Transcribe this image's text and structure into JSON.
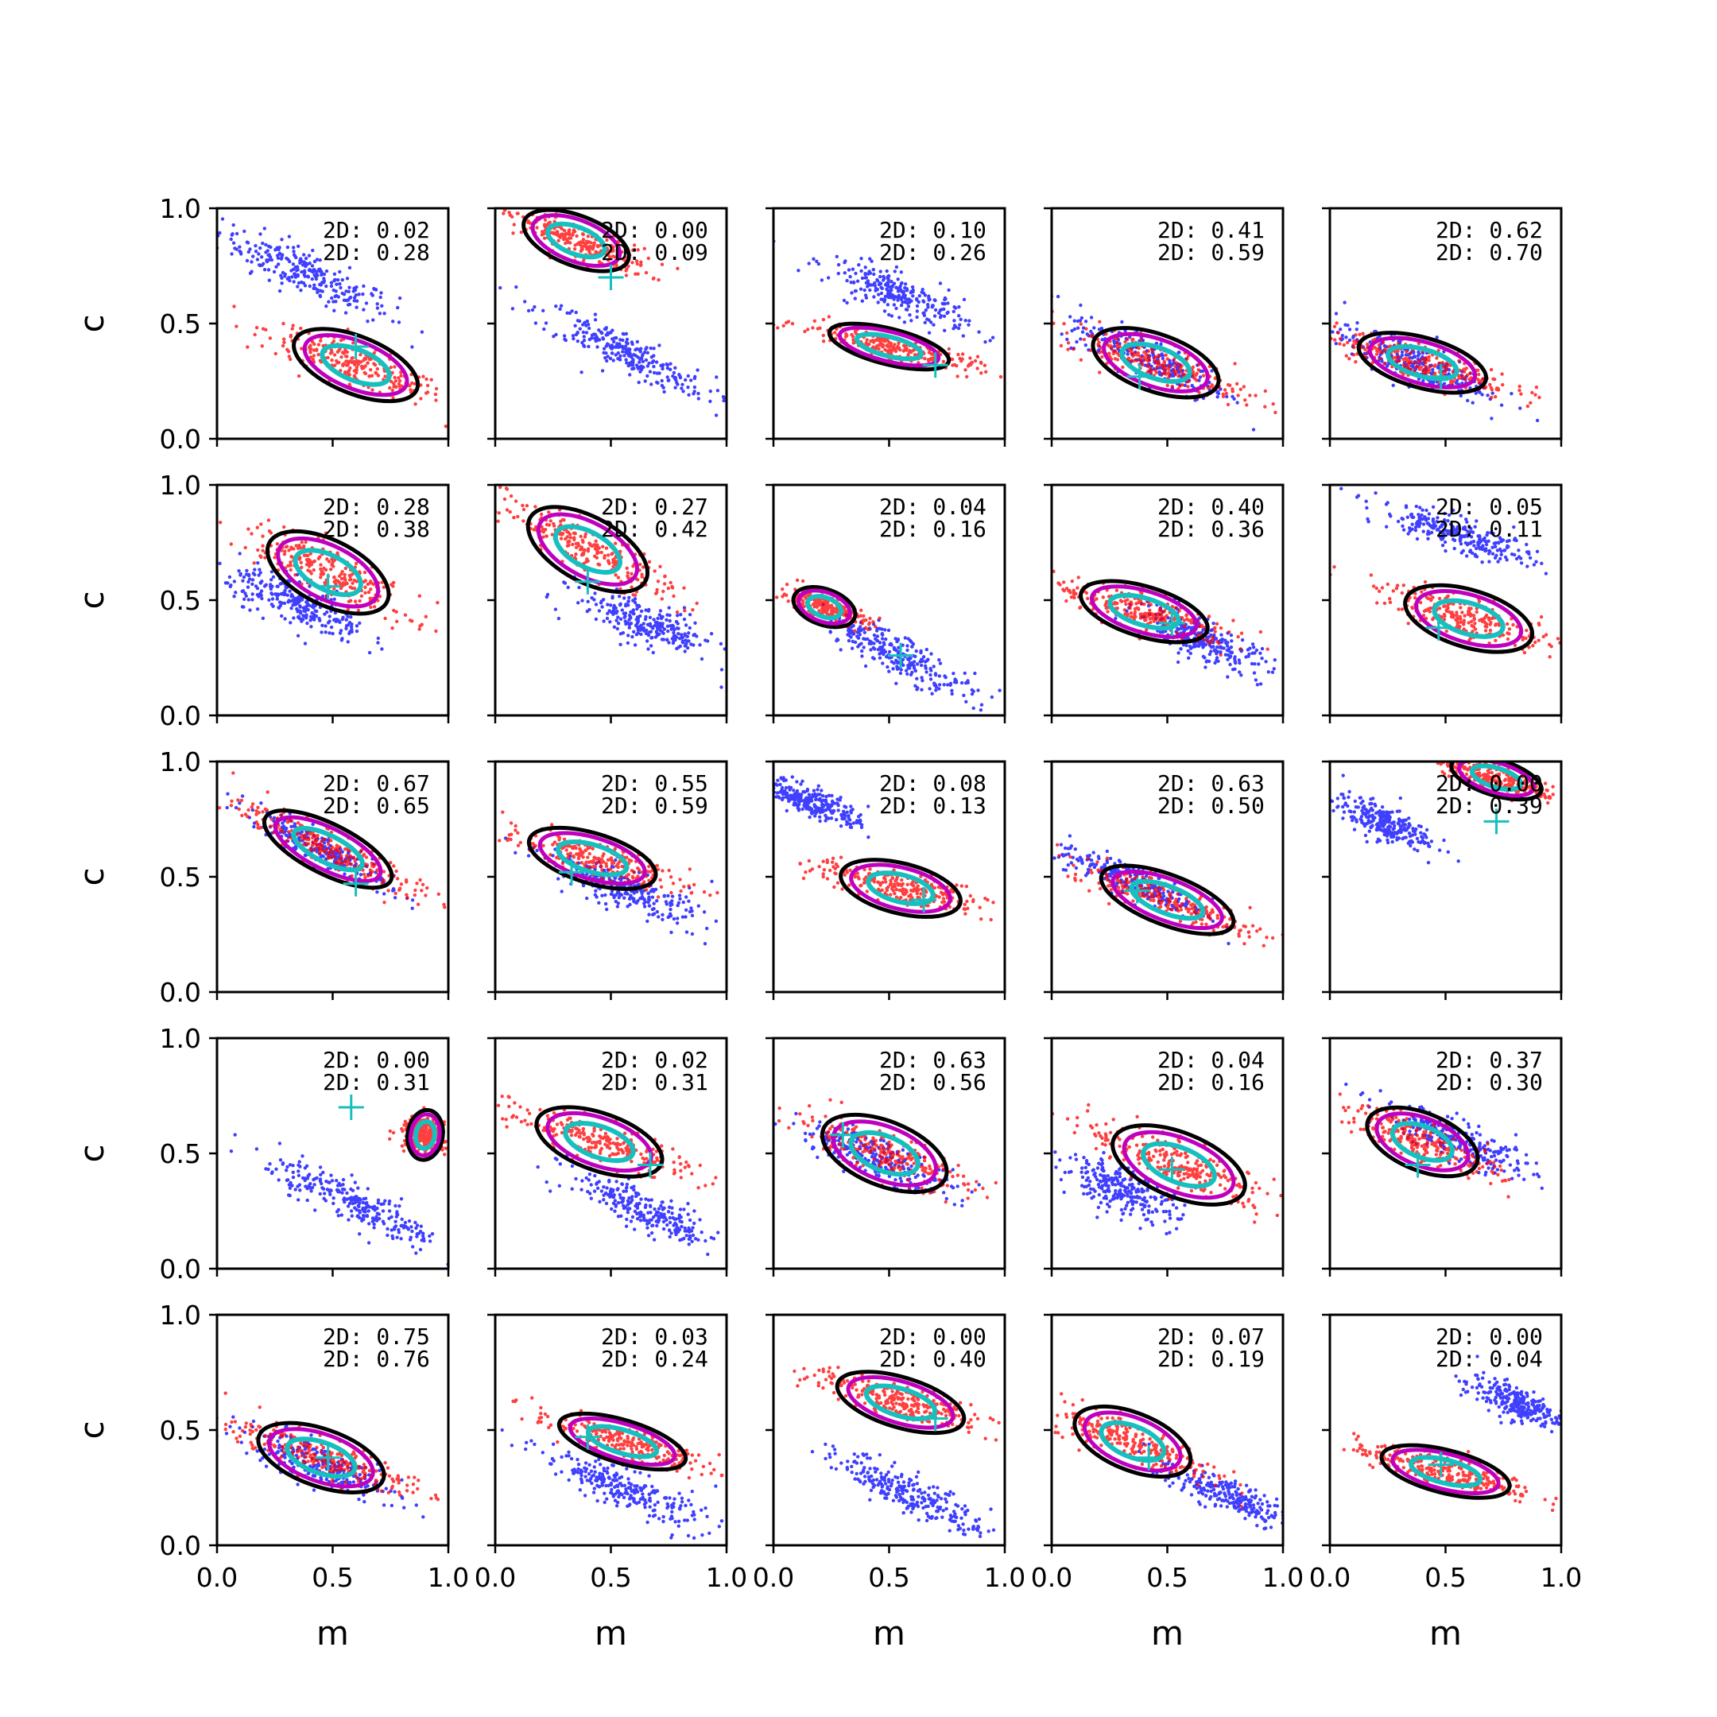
{
  "chart_data": {
    "type": "scatter",
    "grid": {
      "rows": 5,
      "cols": 5
    },
    "xlabel": "m",
    "ylabel": "c",
    "xlim": [
      0,
      1
    ],
    "ylim": [
      0,
      1
    ],
    "xticks": [
      "0.0",
      "0.5",
      "1.0"
    ],
    "yticks": [
      "0.0",
      "0.5",
      "1.0"
    ],
    "grid_lines": false,
    "series_colors": {
      "sample_a": "#0000ff",
      "sample_b": "#ff0000",
      "contour_outer": "#000000",
      "contour_mid": "#bf00bf",
      "contour_inner": "#17bfbf",
      "marker": "#17bfbf"
    },
    "panels": [
      {
        "ann1": "2D: 0.02",
        "ann2": "2D: 0.28",
        "marker": [
          0.6,
          0.4
        ],
        "blue": {
          "cx": 0.38,
          "cy": 0.72,
          "slope": -0.48,
          "len": 0.45,
          "wid": 0.09
        },
        "red": {
          "cx": 0.6,
          "cy": 0.32,
          "slope": -0.4,
          "len": 0.45,
          "wid": 0.08
        }
      },
      {
        "ann1": "2D: 0.00",
        "ann2": "2D: 0.09",
        "marker": [
          0.5,
          0.7
        ],
        "blue": {
          "cx": 0.55,
          "cy": 0.38,
          "slope": -0.5,
          "len": 0.45,
          "wid": 0.08
        },
        "red": {
          "cx": 0.35,
          "cy": 0.86,
          "slope": -0.38,
          "len": 0.38,
          "wid": 0.07
        }
      },
      {
        "ann1": "2D: 0.10",
        "ann2": "2D: 0.26",
        "marker": [
          0.7,
          0.32
        ],
        "blue": {
          "cx": 0.55,
          "cy": 0.62,
          "slope": -0.42,
          "len": 0.35,
          "wid": 0.08
        },
        "red": {
          "cx": 0.5,
          "cy": 0.4,
          "slope": -0.25,
          "len": 0.42,
          "wid": 0.05
        }
      },
      {
        "ann1": "2D: 0.41",
        "ann2": "2D: 0.59",
        "marker": [
          0.38,
          0.27
        ],
        "blue": {
          "cx": 0.42,
          "cy": 0.35,
          "slope": -0.45,
          "len": 0.42,
          "wid": 0.09
        },
        "red": {
          "cx": 0.45,
          "cy": 0.33,
          "slope": -0.35,
          "len": 0.45,
          "wid": 0.08
        }
      },
      {
        "ann1": "2D: 0.62",
        "ann2": "2D: 0.70",
        "marker": [
          0.48,
          0.27
        ],
        "blue": {
          "cx": 0.35,
          "cy": 0.33,
          "slope": -0.38,
          "len": 0.4,
          "wid": 0.08
        },
        "red": {
          "cx": 0.4,
          "cy": 0.33,
          "slope": -0.28,
          "len": 0.45,
          "wid": 0.07
        }
      },
      {
        "ann1": "2D: 0.28",
        "ann2": "2D: 0.38",
        "marker": [
          0.48,
          0.56
        ],
        "blue": {
          "cx": 0.35,
          "cy": 0.48,
          "slope": -0.45,
          "len": 0.35,
          "wid": 0.09
        },
        "red": {
          "cx": 0.48,
          "cy": 0.62,
          "slope": -0.5,
          "len": 0.45,
          "wid": 0.09
        }
      },
      {
        "ann1": "2D: 0.27",
        "ann2": "2D: 0.42",
        "marker": [
          0.4,
          0.58
        ],
        "blue": {
          "cx": 0.65,
          "cy": 0.4,
          "slope": -0.4,
          "len": 0.35,
          "wid": 0.09
        },
        "red": {
          "cx": 0.4,
          "cy": 0.72,
          "slope": -0.55,
          "len": 0.45,
          "wid": 0.09
        }
      },
      {
        "ann1": "2D: 0.04",
        "ann2": "2D: 0.16",
        "marker": [
          0.55,
          0.26
        ],
        "blue": {
          "cx": 0.55,
          "cy": 0.26,
          "slope": -0.5,
          "len": 0.4,
          "wid": 0.08
        },
        "red": {
          "cx": 0.22,
          "cy": 0.47,
          "slope": -0.35,
          "len": 0.22,
          "wid": 0.05
        }
      },
      {
        "ann1": "2D: 0.40",
        "ann2": "2D: 0.36",
        "marker": [
          0.52,
          0.4
        ],
        "blue": {
          "cx": 0.65,
          "cy": 0.33,
          "slope": -0.45,
          "len": 0.35,
          "wid": 0.08
        },
        "red": {
          "cx": 0.4,
          "cy": 0.45,
          "slope": -0.3,
          "len": 0.45,
          "wid": 0.07
        }
      },
      {
        "ann1": "2D: 0.05",
        "ann2": "2D: 0.11",
        "marker": [
          0.47,
          0.38
        ],
        "blue": {
          "cx": 0.55,
          "cy": 0.78,
          "slope": -0.35,
          "len": 0.4,
          "wid": 0.07
        },
        "red": {
          "cx": 0.6,
          "cy": 0.42,
          "slope": -0.3,
          "len": 0.45,
          "wid": 0.08
        }
      },
      {
        "ann1": "2D: 0.67",
        "ann2": "2D: 0.65",
        "marker": [
          0.6,
          0.47
        ],
        "blue": {
          "cx": 0.45,
          "cy": 0.62,
          "slope": -0.55,
          "len": 0.38,
          "wid": 0.06
        },
        "red": {
          "cx": 0.48,
          "cy": 0.62,
          "slope": -0.5,
          "len": 0.48,
          "wid": 0.07
        }
      },
      {
        "ann1": "2D: 0.55",
        "ann2": "2D: 0.59",
        "marker": [
          0.33,
          0.52
        ],
        "blue": {
          "cx": 0.55,
          "cy": 0.45,
          "slope": -0.4,
          "len": 0.4,
          "wid": 0.08
        },
        "red": {
          "cx": 0.42,
          "cy": 0.58,
          "slope": -0.3,
          "len": 0.45,
          "wid": 0.07
        }
      },
      {
        "ann1": "2D: 0.08",
        "ann2": "2D: 0.13",
        "marker": [
          0.65,
          0.4
        ],
        "blue": {
          "cx": 0.18,
          "cy": 0.82,
          "slope": -0.4,
          "len": 0.25,
          "wid": 0.06
        },
        "red": {
          "cx": 0.55,
          "cy": 0.45,
          "slope": -0.25,
          "len": 0.42,
          "wid": 0.07
        }
      },
      {
        "ann1": "2D: 0.63",
        "ann2": "2D: 0.50",
        "marker": [
          0.37,
          0.44
        ],
        "blue": {
          "cx": 0.35,
          "cy": 0.48,
          "slope": -0.45,
          "len": 0.38,
          "wid": 0.07
        },
        "red": {
          "cx": 0.5,
          "cy": 0.4,
          "slope": -0.38,
          "len": 0.48,
          "wid": 0.07
        }
      },
      {
        "ann1": "2D: 0.00",
        "ann2": "2D: 0.39",
        "marker": [
          0.72,
          0.74
        ],
        "blue": {
          "cx": 0.22,
          "cy": 0.74,
          "slope": -0.4,
          "len": 0.25,
          "wid": 0.07
        },
        "red": {
          "cx": 0.72,
          "cy": 0.93,
          "slope": -0.3,
          "len": 0.32,
          "wid": 0.05
        }
      },
      {
        "ann1": "2D: 0.00",
        "ann2": "2D: 0.31",
        "marker": [
          0.58,
          0.7
        ],
        "blue": {
          "cx": 0.6,
          "cy": 0.28,
          "slope": -0.5,
          "len": 0.45,
          "wid": 0.08
        },
        "red": {
          "cx": 0.9,
          "cy": 0.58,
          "slope": -0.15,
          "len": 0.12,
          "wid": 0.07
        }
      },
      {
        "ann1": "2D: 0.02",
        "ann2": "2D: 0.31",
        "marker": [
          0.67,
          0.45
        ],
        "blue": {
          "cx": 0.65,
          "cy": 0.25,
          "slope": -0.5,
          "len": 0.4,
          "wid": 0.08
        },
        "red": {
          "cx": 0.45,
          "cy": 0.55,
          "slope": -0.35,
          "len": 0.45,
          "wid": 0.08
        }
      },
      {
        "ann1": "2D: 0.63",
        "ann2": "2D: 0.56",
        "marker": [
          0.3,
          0.58
        ],
        "blue": {
          "cx": 0.45,
          "cy": 0.48,
          "slope": -0.4,
          "len": 0.4,
          "wid": 0.08
        },
        "red": {
          "cx": 0.48,
          "cy": 0.5,
          "slope": -0.4,
          "len": 0.45,
          "wid": 0.09
        }
      },
      {
        "ann1": "2D: 0.04",
        "ann2": "2D: 0.16",
        "marker": [
          0.52,
          0.43
        ],
        "blue": {
          "cx": 0.3,
          "cy": 0.34,
          "slope": -0.45,
          "len": 0.3,
          "wid": 0.09
        },
        "red": {
          "cx": 0.55,
          "cy": 0.45,
          "slope": -0.4,
          "len": 0.48,
          "wid": 0.09
        }
      },
      {
        "ann1": "2D: 0.37",
        "ann2": "2D: 0.30",
        "marker": [
          0.38,
          0.45
        ],
        "blue": {
          "cx": 0.55,
          "cy": 0.55,
          "slope": -0.45,
          "len": 0.4,
          "wid": 0.08
        },
        "red": {
          "cx": 0.4,
          "cy": 0.55,
          "slope": -0.4,
          "len": 0.4,
          "wid": 0.08
        }
      },
      {
        "ann1": "2D: 0.75",
        "ann2": "2D: 0.76",
        "marker": [
          0.48,
          0.38
        ],
        "blue": {
          "cx": 0.45,
          "cy": 0.35,
          "slope": -0.4,
          "len": 0.4,
          "wid": 0.08
        },
        "red": {
          "cx": 0.45,
          "cy": 0.38,
          "slope": -0.35,
          "len": 0.45,
          "wid": 0.08
        }
      },
      {
        "ann1": "2D: 0.03",
        "ann2": "2D: 0.24",
        "marker": [
          0.4,
          0.47
        ],
        "blue": {
          "cx": 0.55,
          "cy": 0.25,
          "slope": -0.45,
          "len": 0.42,
          "wid": 0.08
        },
        "red": {
          "cx": 0.55,
          "cy": 0.45,
          "slope": -0.3,
          "len": 0.45,
          "wid": 0.06
        }
      },
      {
        "ann1": "2D: 0.00",
        "ann2": "2D: 0.40",
        "marker": [
          0.7,
          0.55
        ],
        "blue": {
          "cx": 0.6,
          "cy": 0.22,
          "slope": -0.5,
          "len": 0.38,
          "wid": 0.08
        },
        "red": {
          "cx": 0.55,
          "cy": 0.62,
          "slope": -0.3,
          "len": 0.45,
          "wid": 0.07
        }
      },
      {
        "ann1": "2D: 0.07",
        "ann2": "2D: 0.19",
        "marker": [
          0.42,
          0.38
        ],
        "blue": {
          "cx": 0.75,
          "cy": 0.22,
          "slope": -0.45,
          "len": 0.35,
          "wid": 0.07
        },
        "red": {
          "cx": 0.35,
          "cy": 0.45,
          "slope": -0.4,
          "len": 0.42,
          "wid": 0.08
        }
      },
      {
        "ann1": "2D: 0.00",
        "ann2": "2D: 0.04",
        "marker": [
          0.48,
          0.35
        ],
        "blue": {
          "cx": 0.8,
          "cy": 0.62,
          "slope": -0.4,
          "len": 0.25,
          "wid": 0.07
        },
        "red": {
          "cx": 0.5,
          "cy": 0.32,
          "slope": -0.25,
          "len": 0.45,
          "wid": 0.06
        }
      }
    ]
  }
}
